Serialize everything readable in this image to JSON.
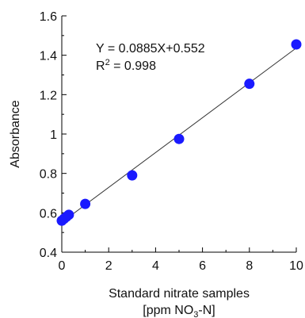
{
  "chart_data": {
    "type": "scatter",
    "xlabel_line1": "Standard nitrate samples",
    "xlabel_line2_prefix": "[ppm NO",
    "xlabel_line2_sub": "3",
    "xlabel_line2_suffix": "-N]",
    "ylabel": "Absorbance",
    "xlim": [
      0,
      10
    ],
    "ylim": [
      0.4,
      1.6
    ],
    "x_ticks": [
      "0",
      "2",
      "4",
      "6",
      "8",
      "10"
    ],
    "y_ticks": [
      "0.4",
      "0.6",
      "0.8",
      "1",
      "1.2",
      "1.4",
      "1.6"
    ],
    "grid": false,
    "points": [
      {
        "x": 0,
        "y": 0.56
      },
      {
        "x": 0.1,
        "y": 0.57
      },
      {
        "x": 0.2,
        "y": 0.58
      },
      {
        "x": 0.3,
        "y": 0.59
      },
      {
        "x": 1,
        "y": 0.645
      },
      {
        "x": 3,
        "y": 0.79
      },
      {
        "x": 5,
        "y": 0.975
      },
      {
        "x": 8,
        "y": 1.255
      },
      {
        "x": 10,
        "y": 1.455
      }
    ],
    "fit": {
      "slope": 0.0885,
      "intercept": 0.552
    },
    "equation_text": "Y = 0.0885X+0.552",
    "r2_prefix": "R",
    "r2_sup": "2",
    "r2_suffix": " = 0.998",
    "colors": {
      "points": "#1a1aff",
      "line": "#333333",
      "axis": "#000000"
    }
  }
}
